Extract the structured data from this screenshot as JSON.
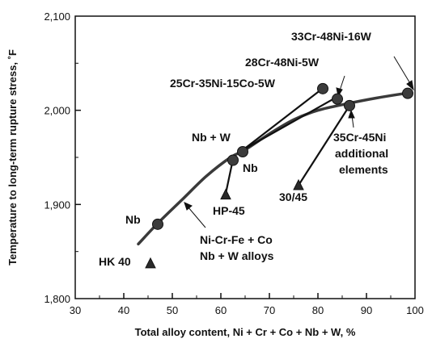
{
  "chart_data": {
    "type": "scatter",
    "title": "",
    "xlabel": "Total alloy content, Ni + Cr + Co + Nb + W, %",
    "ylabel": "Temperature to long-term rupture stress, ˚F",
    "xlim": [
      30,
      100
    ],
    "ylim": [
      1800,
      2100
    ],
    "x_ticks": [
      30,
      40,
      50,
      60,
      70,
      80,
      90,
      100
    ],
    "y_ticks": [
      1800,
      1900,
      2000,
      2100
    ],
    "x_tick_labels": [
      "30",
      "40",
      "50",
      "60",
      "70",
      "80",
      "90",
      "100"
    ],
    "y_tick_labels": [
      "1,800",
      "1,900",
      "2,000",
      "2,100"
    ],
    "grid": false,
    "legend": "none",
    "trend_curve": {
      "x": [
        43,
        47,
        52,
        57,
        62,
        65,
        70,
        75,
        80,
        86,
        92,
        98
      ],
      "y": [
        1858,
        1880,
        1905,
        1930,
        1950,
        1958,
        1975,
        1990,
        2000,
        2007,
        2013,
        2018
      ]
    },
    "series": [
      {
        "marker": "triangle",
        "points": [
          {
            "label": "HK 40",
            "x": 45.5,
            "y": 1837
          },
          {
            "label": "HP-45",
            "x": 61,
            "y": 1910
          },
          {
            "label": "30/45",
            "x": 76,
            "y": 1920
          }
        ]
      },
      {
        "marker": "circle",
        "points": [
          {
            "label": "Nb",
            "x": 47,
            "y": 1879
          },
          {
            "label": "Nb",
            "x": 62.5,
            "y": 1947
          },
          {
            "label": "Nb + W",
            "x": 64.5,
            "y": 1956
          },
          {
            "label": "25Cr-35Ni-15Co-5W",
            "x": 81,
            "y": 2023
          },
          {
            "label": "28Cr-48Ni-5W",
            "x": 84,
            "y": 2012
          },
          {
            "label": "35Cr-45Ni additional elements",
            "x": 86.5,
            "y": 2005
          },
          {
            "label": "33Cr-48Ni-16W",
            "x": 98.5,
            "y": 2018
          }
        ]
      }
    ],
    "annotations": [
      {
        "text": "33Cr-48Ni-16W"
      },
      {
        "text": "28Cr-48Ni-5W"
      },
      {
        "text": "25Cr-35Ni-15Co-5W"
      },
      {
        "text": "Nb + W"
      },
      {
        "text": "Nb"
      },
      {
        "text": "35Cr-45Ni"
      },
      {
        "text": "additional"
      },
      {
        "text": "elements"
      },
      {
        "text": "30/45"
      },
      {
        "text": "HP-45"
      },
      {
        "text": "Nb"
      },
      {
        "text": "Ni-Cr-Fe + Co"
      },
      {
        "text": "Nb + W alloys"
      },
      {
        "text": "HK 40"
      }
    ]
  }
}
